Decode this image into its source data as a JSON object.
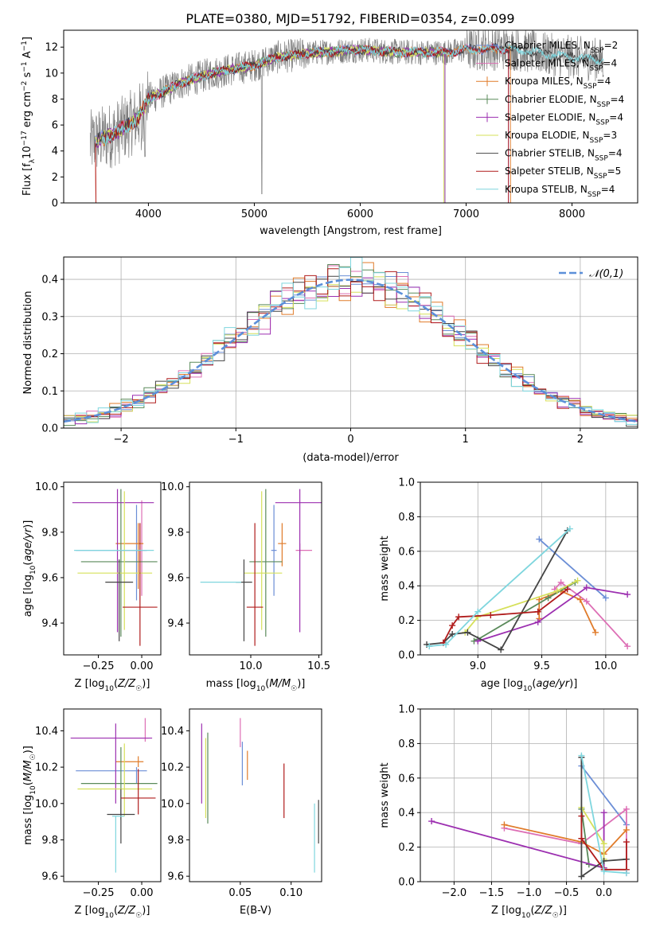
{
  "figure_title": "PLATE=0380, MJD=51792, FIBERID=0354, z=0.099",
  "colors": {
    "Chabrier MILES": "#6b8ed6",
    "Salpeter MILES": "#dd6fb5",
    "Kroupa MILES": "#e07b2a",
    "Chabrier ELODIE": "#5a8a5a",
    "Salpeter ELODIE": "#9c2fb0",
    "Kroupa ELODIE": "#d6e05a",
    "Chabrier STELIB": "#444444",
    "Salpeter STELIB": "#b01c1c",
    "Kroupa STELIB": "#7fd6de",
    "data": "#808080",
    "normal": "#5b8fd9"
  },
  "chart_data": [
    {
      "type": "line",
      "title": "PLATE=0380, MJD=51792, FIBERID=0354, z=0.099",
      "xlabel": "wavelength [Angstrom, rest frame]",
      "ylabel": "Flux [f_λ 10^-17 erg cm^-2 s^-1 A^-1]",
      "xlim": [
        3200,
        8620
      ],
      "ylim": [
        0,
        13.3
      ],
      "xticks": [
        4000,
        5000,
        6000,
        7000,
        8000
      ],
      "yticks": [
        0,
        2,
        4,
        6,
        8,
        10,
        12
      ],
      "grid": false,
      "legend": "right",
      "spectrum_continuum_points": [
        [
          3450,
          4.6
        ],
        [
          3700,
          5.4
        ],
        [
          3900,
          6.5
        ],
        [
          4000,
          8.0
        ],
        [
          4300,
          9.2
        ],
        [
          4600,
          10.0
        ],
        [
          5000,
          10.6
        ],
        [
          5200,
          11.2
        ],
        [
          5600,
          11.6
        ],
        [
          6000,
          11.8
        ],
        [
          6400,
          11.6
        ],
        [
          6800,
          11.6
        ],
        [
          7000,
          11.8
        ],
        [
          7400,
          11.9
        ],
        [
          7800,
          11.4
        ],
        [
          8300,
          11.0
        ]
      ],
      "series": [
        {
          "name": "Chabrier MILES, N_SSP=2",
          "x_range": [
            3500,
            7400
          ]
        },
        {
          "name": "Salpeter MILES, N_SSP=4",
          "x_range": [
            3500,
            7400
          ]
        },
        {
          "name": "Kroupa MILES, N_SSP=4",
          "x_range": [
            3500,
            7420
          ]
        },
        {
          "name": "Chabrier ELODIE, N_SSP=4",
          "x_range": [
            3500,
            6800
          ]
        },
        {
          "name": "Salpeter ELODIE, N_SSP=4",
          "x_range": [
            3500,
            6800
          ]
        },
        {
          "name": "Kroupa ELODIE, N_SSP=3",
          "x_range": [
            3500,
            6790
          ]
        },
        {
          "name": "Chabrier STELIB, N_SSP=4",
          "x_range": [
            3500,
            8300
          ]
        },
        {
          "name": "Salpeter STELIB, N_SSP=5",
          "x_range": [
            3500,
            7400
          ]
        },
        {
          "name": "Kroupa STELIB, N_SSP=4",
          "x_range": [
            3500,
            8300
          ]
        }
      ]
    },
    {
      "type": "histogram",
      "xlabel": "(data-model)/error",
      "ylabel": "Normed distribution",
      "xlim": [
        -2.5,
        2.5
      ],
      "ylim": [
        0,
        0.46
      ],
      "xticks": [
        -2,
        -1,
        0,
        1,
        2
      ],
      "yticks": [
        0.0,
        0.1,
        0.2,
        0.3,
        0.4
      ],
      "grid": true,
      "legend": "top-right",
      "reference_curve": {
        "name": "𝒩(0,1)",
        "mu": 0,
        "sigma": 1
      },
      "bin_width": 0.1
    },
    {
      "type": "errorbar",
      "xlabel": "Z [log10(Z/Z☉)]",
      "ylabel": "age  [log10(age/yr)]",
      "xlim": [
        -0.45,
        0.11
      ],
      "ylim": [
        9.26,
        10.02
      ],
      "xticks": [
        -0.25,
        0.0
      ],
      "yticks": [
        9.4,
        9.6,
        9.8,
        10.0
      ],
      "points": [
        {
          "model": "Chabrier MILES",
          "x": -0.03,
          "y": 9.72,
          "xerr": [
            0.35,
            0.06
          ],
          "yerr": [
            0.22,
            0.2
          ]
        },
        {
          "model": "Salpeter MILES",
          "x": 0.0,
          "y": 9.72,
          "xerr": [
            0.14,
            0.02
          ],
          "yerr": [
            0.2,
            0.22
          ]
        },
        {
          "model": "Kroupa MILES",
          "x": -0.02,
          "y": 9.75,
          "xerr": [
            0.13,
            0.03
          ],
          "yerr": [
            0.2,
            0.09
          ]
        },
        {
          "model": "Chabrier ELODIE",
          "x": -0.12,
          "y": 9.67,
          "xerr": [
            0.23,
            0.21
          ],
          "yerr": [
            0.33,
            0.32
          ]
        },
        {
          "model": "Salpeter ELODIE",
          "x": -0.14,
          "y": 9.93,
          "xerr": [
            0.26,
            0.21
          ],
          "yerr": [
            0.57,
            0.06
          ]
        },
        {
          "model": "Kroupa ELODIE",
          "x": -0.1,
          "y": 9.62,
          "xerr": [
            0.27,
            0.16
          ],
          "yerr": [
            0.25,
            0.36
          ]
        },
        {
          "model": "Chabrier STELIB",
          "x": -0.13,
          "y": 9.58,
          "xerr": [
            0.08,
            0.08
          ],
          "yerr": [
            0.26,
            0.1
          ]
        },
        {
          "model": "Salpeter STELIB",
          "x": -0.01,
          "y": 9.47,
          "xerr": [
            0.1,
            0.1
          ],
          "yerr": [
            0.17,
            0.37
          ]
        },
        {
          "model": "Kroupa STELIB",
          "x": -0.16,
          "y": 9.72,
          "xerr": [
            0.23,
            0.23
          ],
          "yerr": [
            0.0,
            0.0
          ]
        }
      ]
    },
    {
      "type": "errorbar",
      "xlabel": "mass [log10(M/M☉)]",
      "ylabel": "",
      "xlim": [
        9.55,
        10.52
      ],
      "ylim": [
        9.26,
        10.02
      ],
      "xticks": [
        10.0,
        10.5
      ],
      "yticks": [
        9.4,
        9.6,
        9.8,
        10.0
      ],
      "points": [
        {
          "model": "Chabrier MILES",
          "x": 10.17,
          "y": 9.72,
          "xerr": [
            0.02,
            0.02
          ],
          "yerr": [
            0.2,
            0.2
          ]
        },
        {
          "model": "Salpeter MILES",
          "x": 10.36,
          "y": 9.72,
          "xerr": [
            0.03,
            0.09
          ],
          "yerr": [
            0.02,
            0.03
          ]
        },
        {
          "model": "Kroupa MILES",
          "x": 10.23,
          "y": 9.75,
          "xerr": [
            0.03,
            0.03
          ],
          "yerr": [
            0.1,
            0.09
          ]
        },
        {
          "model": "Chabrier ELODIE",
          "x": 10.11,
          "y": 9.67,
          "xerr": [
            0.12,
            0.12
          ],
          "yerr": [
            0.33,
            0.32
          ]
        },
        {
          "model": "Salpeter ELODIE",
          "x": 10.36,
          "y": 9.93,
          "xerr": [
            0.18,
            0.21
          ],
          "yerr": [
            0.57,
            0.06
          ]
        },
        {
          "model": "Kroupa ELODIE",
          "x": 10.08,
          "y": 9.62,
          "xerr": [
            0.13,
            0.15
          ],
          "yerr": [
            0.25,
            0.36
          ]
        },
        {
          "model": "Chabrier STELIB",
          "x": 9.95,
          "y": 9.58,
          "xerr": [
            0.06,
            0.06
          ],
          "yerr": [
            0.26,
            0.1
          ]
        },
        {
          "model": "Salpeter STELIB",
          "x": 10.03,
          "y": 9.47,
          "xerr": [
            0.06,
            0.06
          ],
          "yerr": [
            0.17,
            0.37
          ]
        },
        {
          "model": "Kroupa STELIB",
          "x": 9.93,
          "y": 9.58,
          "xerr": [
            0.3,
            0.0
          ],
          "yerr": [
            0.0,
            0.0
          ]
        }
      ]
    },
    {
      "type": "line",
      "xlabel": "age  [log10(age/yr)]",
      "ylabel": "mass weight",
      "xlim": [
        8.55,
        10.25
      ],
      "ylim": [
        0,
        1.0
      ],
      "xticks": [
        9.0,
        9.5,
        10.0
      ],
      "yticks": [
        0.0,
        0.2,
        0.4,
        0.6,
        0.8,
        1.0
      ],
      "grid": true,
      "series": [
        {
          "name": "Chabrier MILES",
          "x": [
            9.48,
            10.0
          ],
          "y": [
            0.67,
            0.33
          ]
        },
        {
          "name": "Salpeter MILES",
          "x": [
            9.6,
            9.65,
            9.85,
            10.17
          ],
          "y": [
            0.38,
            0.42,
            0.31,
            0.05
          ]
        },
        {
          "name": "Kroupa MILES",
          "x": [
            9.48,
            9.48,
            9.65,
            9.8,
            9.92
          ],
          "y": [
            0.21,
            0.32,
            0.37,
            0.32,
            0.13
          ]
        },
        {
          "name": "Chabrier ELODIE",
          "x": [
            8.97,
            9.0,
            9.55,
            9.76
          ],
          "y": [
            0.08,
            0.09,
            0.33,
            0.42
          ]
        },
        {
          "name": "Salpeter ELODIE",
          "x": [
            9.0,
            9.47,
            9.85,
            10.17
          ],
          "y": [
            0.08,
            0.19,
            0.39,
            0.35
          ]
        },
        {
          "name": "Kroupa ELODIE",
          "x": [
            8.9,
            9.0,
            9.62,
            9.78
          ],
          "y": [
            0.13,
            0.22,
            0.37,
            0.43
          ]
        },
        {
          "name": "Chabrier STELIB",
          "x": [
            8.6,
            8.73,
            8.8,
            8.92,
            9.18,
            9.7
          ],
          "y": [
            0.06,
            0.07,
            0.12,
            0.13,
            0.03,
            0.72
          ]
        },
        {
          "name": "Salpeter STELIB",
          "x": [
            8.73,
            8.8,
            8.85,
            9.1,
            9.47,
            9.7
          ],
          "y": [
            0.07,
            0.17,
            0.22,
            0.23,
            0.25,
            0.38
          ]
        },
        {
          "name": "Kroupa STELIB",
          "x": [
            8.62,
            8.75,
            9.0,
            9.72
          ],
          "y": [
            0.05,
            0.06,
            0.25,
            0.73
          ]
        }
      ]
    },
    {
      "type": "errorbar",
      "xlabel": "Z [log10(Z/Z☉)]",
      "ylabel": "mass [log10(M/M☉)]",
      "xlim": [
        -0.45,
        0.11
      ],
      "ylim": [
        9.57,
        10.52
      ],
      "xticks": [
        -0.25,
        0.0
      ],
      "yticks": [
        9.6,
        9.8,
        10.0,
        10.2,
        10.4
      ],
      "points": [
        {
          "model": "Chabrier MILES",
          "x": -0.03,
          "y": 10.18,
          "xerr": [
            0.35,
            0.06
          ],
          "yerr": [
            0.07,
            0.02
          ]
        },
        {
          "model": "Salpeter MILES",
          "x": 0.02,
          "y": 10.36,
          "xerr": [
            0.15,
            0.02
          ],
          "yerr": [
            0.02,
            0.11
          ]
        },
        {
          "model": "Kroupa MILES",
          "x": -0.02,
          "y": 10.23,
          "xerr": [
            0.13,
            0.03
          ],
          "yerr": [
            0.03,
            0.03
          ]
        },
        {
          "model": "Chabrier ELODIE",
          "x": -0.12,
          "y": 10.11,
          "xerr": [
            0.23,
            0.21
          ],
          "yerr": [
            0.2,
            0.2
          ]
        },
        {
          "model": "Salpeter ELODIE",
          "x": -0.15,
          "y": 10.36,
          "xerr": [
            0.26,
            0.21
          ],
          "yerr": [
            0.36,
            0.08
          ]
        },
        {
          "model": "Kroupa ELODIE",
          "x": -0.1,
          "y": 10.08,
          "xerr": [
            0.27,
            0.16
          ],
          "yerr": [
            0.15,
            0.25
          ]
        },
        {
          "model": "Chabrier STELIB",
          "x": -0.12,
          "y": 9.94,
          "xerr": [
            0.08,
            0.08
          ],
          "yerr": [
            0.16,
            0.14
          ]
        },
        {
          "model": "Salpeter STELIB",
          "x": -0.02,
          "y": 10.03,
          "xerr": [
            0.1,
            0.1
          ],
          "yerr": [
            0.09,
            0.16
          ]
        },
        {
          "model": "Kroupa STELIB",
          "x": -0.15,
          "y": 9.93,
          "xerr": [
            0.02,
            0.05
          ],
          "yerr": [
            0.31,
            0.0
          ]
        }
      ]
    },
    {
      "type": "errorbar",
      "xlabel": "E(B-V)",
      "ylabel": "",
      "xlim": [
        0.0,
        0.13
      ],
      "ylim": [
        9.57,
        10.52
      ],
      "xticks": [
        0.05,
        0.1
      ],
      "yticks": [
        9.6,
        9.8,
        10.0,
        10.2,
        10.4
      ],
      "points": [
        {
          "model": "Chabrier MILES",
          "x": 0.052,
          "y": 10.22,
          "yerr": [
            0.12,
            0.12
          ]
        },
        {
          "model": "Salpeter MILES",
          "x": 0.05,
          "y": 10.39,
          "yerr": [
            0.08,
            0.08
          ]
        },
        {
          "model": "Kroupa MILES",
          "x": 0.057,
          "y": 10.21,
          "yerr": [
            0.08,
            0.08
          ]
        },
        {
          "model": "Chabrier ELODIE",
          "x": 0.018,
          "y": 10.14,
          "yerr": [
            0.25,
            0.25
          ]
        },
        {
          "model": "Salpeter ELODIE",
          "x": 0.012,
          "y": 10.22,
          "yerr": [
            0.22,
            0.22
          ]
        },
        {
          "model": "Kroupa ELODIE",
          "x": 0.016,
          "y": 10.14,
          "yerr": [
            0.22,
            0.22
          ]
        },
        {
          "model": "Chabrier STELIB",
          "x": 0.127,
          "y": 9.9,
          "yerr": [
            0.12,
            0.12
          ]
        },
        {
          "model": "Salpeter STELIB",
          "x": 0.093,
          "y": 10.07,
          "yerr": [
            0.15,
            0.15
          ]
        },
        {
          "model": "Kroupa STELIB",
          "x": 0.123,
          "y": 9.81,
          "yerr": [
            0.19,
            0.19
          ]
        }
      ]
    },
    {
      "type": "line",
      "xlabel": "Z [log10(Z/Z☉)]",
      "ylabel": "mass weight",
      "xlim": [
        -2.45,
        0.45
      ],
      "ylim": [
        0,
        1.0
      ],
      "xticks": [
        -2.0,
        -1.5,
        -1.0,
        -0.5,
        0.0
      ],
      "yticks": [
        0.0,
        0.2,
        0.4,
        0.6,
        0.8,
        1.0
      ],
      "grid": true,
      "series": [
        {
          "name": "Chabrier MILES",
          "x": [
            -0.3,
            0.3
          ],
          "y": [
            0.67,
            0.33
          ]
        },
        {
          "name": "Salpeter MILES",
          "x": [
            -1.33,
            -0.3,
            0.3,
            0.3
          ],
          "y": [
            0.31,
            0.22,
            0.42,
            0.05
          ]
        },
        {
          "name": "Kroupa MILES",
          "x": [
            -1.33,
            -0.3,
            0.0,
            0.3
          ],
          "y": [
            0.33,
            0.23,
            0.16,
            0.3
          ]
        },
        {
          "name": "Chabrier ELODIE",
          "x": [
            -0.3,
            -0.2,
            0.0
          ],
          "y": [
            0.42,
            0.1,
            0.08
          ]
        },
        {
          "name": "Salpeter ELODIE",
          "x": [
            -2.3,
            0.0,
            0.0
          ],
          "y": [
            0.35,
            0.08,
            0.4
          ]
        },
        {
          "name": "Kroupa ELODIE",
          "x": [
            -0.3,
            0.0,
            0.0
          ],
          "y": [
            0.43,
            0.22,
            0.13
          ]
        },
        {
          "name": "Chabrier STELIB",
          "x": [
            -0.3,
            -0.3,
            0.0,
            0.3
          ],
          "y": [
            0.72,
            0.03,
            0.12,
            0.13
          ]
        },
        {
          "name": "Salpeter STELIB",
          "x": [
            -0.3,
            -0.3,
            0.0,
            0.3,
            0.3
          ],
          "y": [
            0.38,
            0.25,
            0.07,
            0.07,
            0.23
          ]
        },
        {
          "name": "Kroupa STELIB",
          "x": [
            -0.3,
            0.0,
            0.3
          ],
          "y": [
            0.73,
            0.06,
            0.05
          ]
        }
      ]
    }
  ]
}
